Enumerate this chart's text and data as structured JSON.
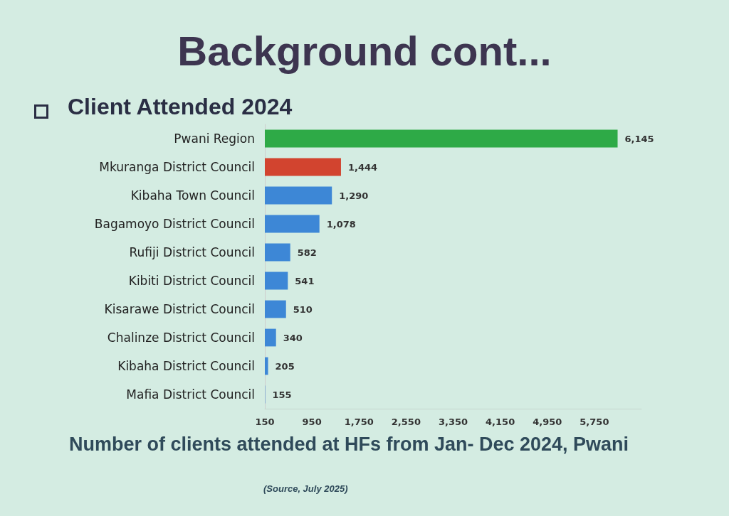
{
  "chart_data": {
    "type": "bar",
    "orientation": "horizontal",
    "title": "Background cont...",
    "subtitle": "Client Attended 2024",
    "categories": [
      "Pwani Region",
      "Mkuranga District Council",
      "Kibaha Town Council",
      "Bagamoyo District Council",
      "Rufiji District Council",
      "Kibiti District Council",
      "Kisarawe District Council",
      "Chalinze District Council",
      "Kibaha District Council",
      "Mafia District Council"
    ],
    "values": [
      6145,
      1444,
      1290,
      1078,
      582,
      541,
      510,
      340,
      205,
      155
    ],
    "colors": [
      "#2eaa47",
      "#d2442f",
      "#3d87d6",
      "#3d87d6",
      "#3d87d6",
      "#3d87d6",
      "#3d87d6",
      "#3d87d6",
      "#3d87d6",
      "#3d87d6"
    ],
    "value_labels": [
      "6,145",
      "1,444",
      "1,290",
      "1,078",
      "582",
      "541",
      "510",
      "340",
      "205",
      "155"
    ],
    "xlim": [
      150,
      6550
    ],
    "xticks": [
      150,
      950,
      {
        "value": 1750,
        "label": "1,750"
      },
      {
        "value": 2550,
        "label": "2,550"
      },
      {
        "value": 3350,
        "label": "3,350"
      },
      {
        "value": 4150,
        "label": "4,150"
      },
      {
        "value": 4950,
        "label": "4,950"
      },
      {
        "value": 5750,
        "label": "5,750"
      }
    ],
    "xlabel": "Number of clients attended at HFs from  Jan- Dec 2024, Pwani",
    "annotations": [
      "(Source, July 2025)"
    ],
    "grid": false
  }
}
